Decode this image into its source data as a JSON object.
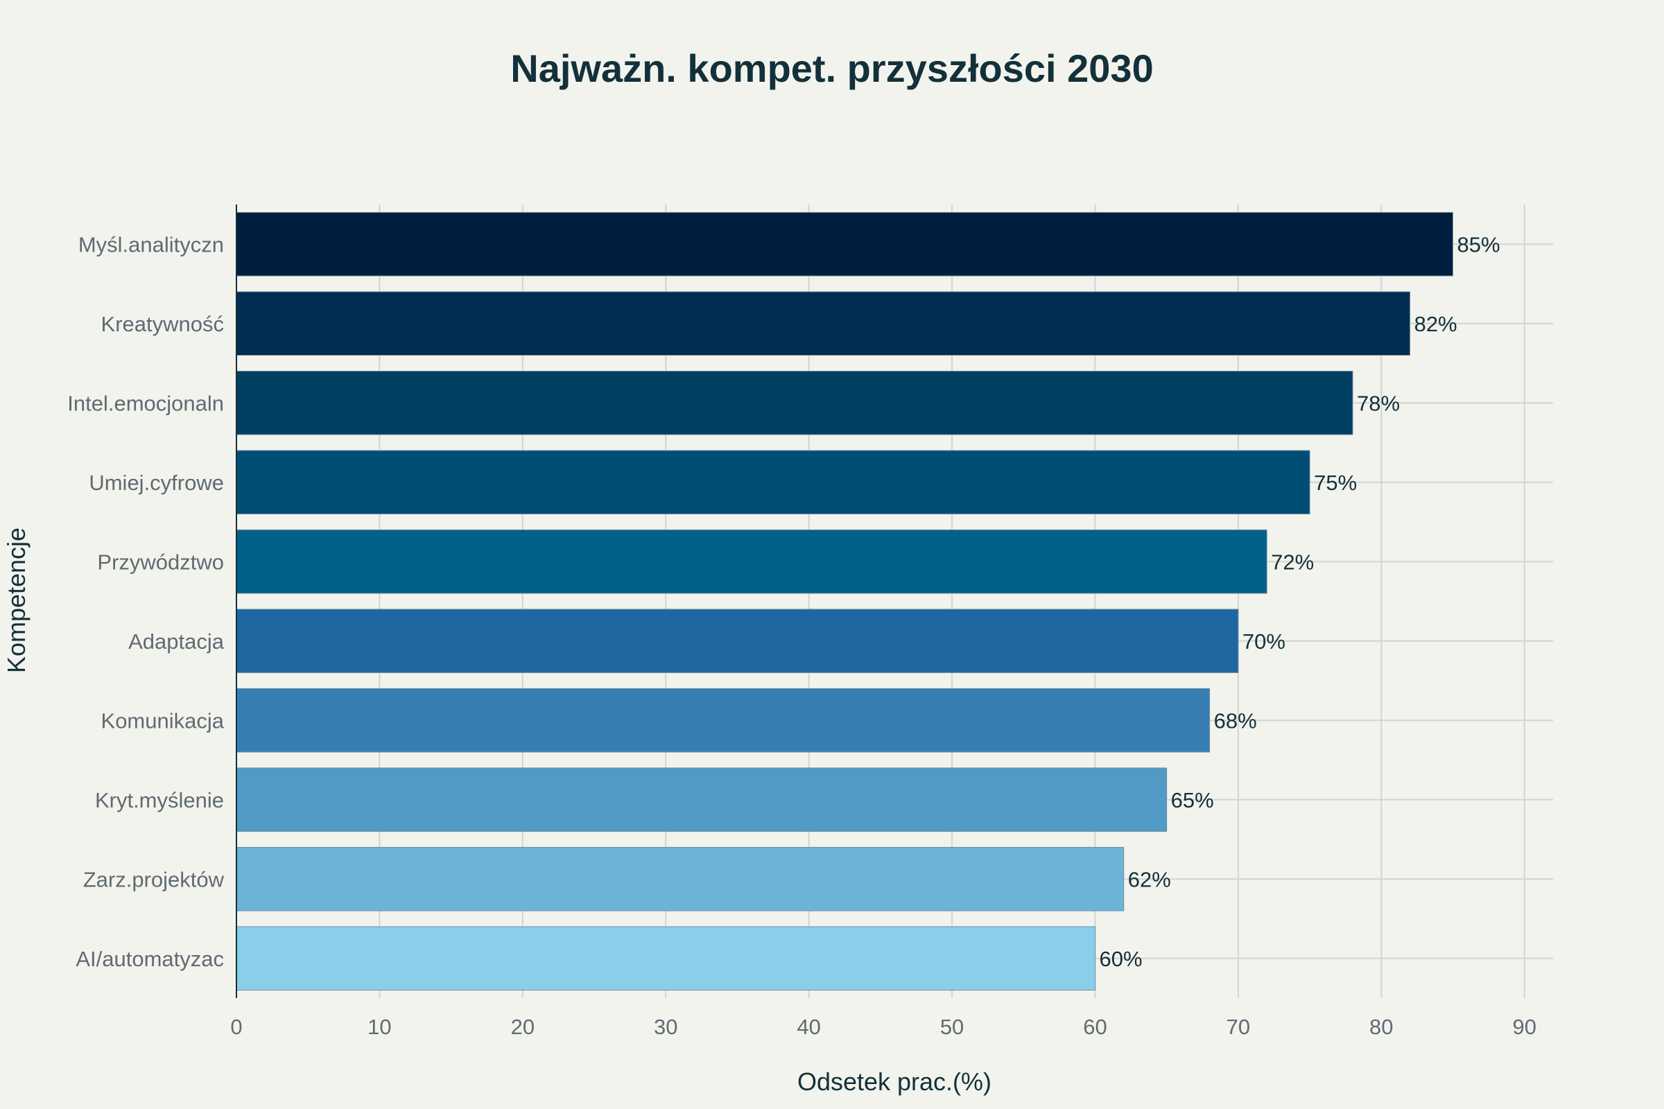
{
  "chart_data": {
    "type": "bar",
    "orientation": "horizontal",
    "title": "Najważn. kompet. przyszłości 2030",
    "xlabel": "Odsetek prac.(%)",
    "ylabel": "Kompetencje",
    "xlim": [
      0,
      92
    ],
    "xticks": [
      0,
      10,
      20,
      30,
      40,
      50,
      60,
      70,
      80,
      90
    ],
    "grid": true,
    "categories": [
      "Myśl.analityczn",
      "Kreatywność",
      "Intel.emocjonaln",
      "Umiej.cyfrowe",
      "Przywództwo",
      "Adaptacja",
      "Komunikacja",
      "Kryt.myślenie",
      "Zarz.projektów",
      "AI/automatyzac"
    ],
    "values": [
      85,
      82,
      78,
      75,
      72,
      70,
      68,
      65,
      62,
      60
    ],
    "data_labels": [
      "85%",
      "82%",
      "78%",
      "75%",
      "72%",
      "70%",
      "68%",
      "65%",
      "62%",
      "60%"
    ],
    "colors": [
      "#001f3f",
      "#002d50",
      "#003f62",
      "#004e74",
      "#00628a",
      "#1e67a0",
      "#377eb3",
      "#519ac6",
      "#6db3d8",
      "#8acfea"
    ]
  }
}
